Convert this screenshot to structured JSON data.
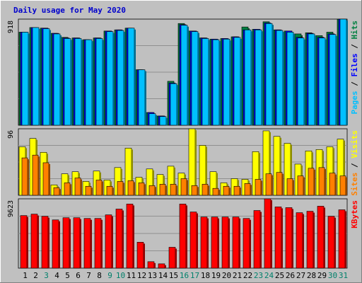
{
  "chart_data": {
    "type": "bar",
    "title": "Daily usage for May 2020",
    "categories": [
      "1",
      "2",
      "3",
      "4",
      "5",
      "6",
      "7",
      "8",
      "9",
      "10",
      "11",
      "12",
      "13",
      "14",
      "15",
      "16",
      "17",
      "18",
      "19",
      "20",
      "21",
      "22",
      "23",
      "24",
      "25",
      "26",
      "27",
      "28",
      "29",
      "30",
      "31"
    ],
    "weekend_days": [
      3,
      9,
      10,
      16,
      17,
      23,
      24,
      30,
      31
    ],
    "colors": {
      "background": "#c0c0c0",
      "title": "#0000cc",
      "hits": "#008040",
      "files": "#0000ff",
      "pages": "#00c0ff",
      "visits": "#ffff00",
      "sites": "#ff8000",
      "kbytes": "#ff0000",
      "weekday_label": "#000000",
      "weekend_label": "#00806b"
    },
    "panels": [
      {
        "ymax_label": "918",
        "ylim": [
          0,
          918
        ],
        "side_label": [
          {
            "text": "Pages",
            "color": "#00c0ff"
          },
          {
            "text": " / ",
            "color": "#000000"
          },
          {
            "text": "Files",
            "color": "#0000ff"
          },
          {
            "text": " / ",
            "color": "#000000"
          },
          {
            "text": "Hits",
            "color": "#008040"
          }
        ],
        "series": [
          {
            "name": "Hits",
            "values": [
              805,
              845,
              840,
              795,
              760,
              755,
              740,
              755,
              815,
              825,
              840,
              480,
              110,
              80,
              380,
              880,
              815,
              755,
              745,
              750,
              765,
              850,
              830,
              895,
              825,
              815,
              790,
              800,
              775,
              805,
              918
            ]
          },
          {
            "name": "Files",
            "values": [
              805,
              845,
              840,
              795,
              755,
              755,
              740,
              755,
              815,
              825,
              840,
              480,
              110,
              80,
              365,
              870,
              815,
              755,
              745,
              750,
              765,
              825,
              830,
              885,
              825,
              815,
              760,
              795,
              760,
              790,
              918
            ]
          },
          {
            "name": "Pages",
            "values": [
              805,
              845,
              835,
              790,
              750,
              750,
              740,
              750,
              810,
              820,
              840,
              480,
              100,
              75,
              360,
              865,
              810,
              750,
              740,
              745,
              760,
              825,
              825,
              880,
              820,
              805,
              755,
              790,
              755,
              785,
              918
            ]
          }
        ]
      },
      {
        "ymax_label": "96",
        "ylim": [
          0,
          96
        ],
        "side_label": [
          {
            "text": "Sites",
            "color": "#ff8000"
          },
          {
            "text": " / ",
            "color": "#000000"
          },
          {
            "text": "Visits",
            "color": "#ffff00"
          }
        ],
        "series": [
          {
            "name": "Visits",
            "values": [
              70,
              82,
              62,
              15,
              31,
              34,
              20,
              35,
              22,
              40,
              68,
              26,
              38,
              30,
              42,
              32,
              96,
              72,
              34,
              18,
              24,
              23,
              63,
              93,
              85,
              75,
              45,
              64,
              66,
              70,
              81
            ]
          },
          {
            "name": "Sites",
            "values": [
              54,
              58,
              47,
              11,
              18,
              25,
              13,
              22,
              13,
              20,
              21,
              18,
              14,
              16,
              16,
              24,
              14,
              16,
              10,
              13,
              13,
              17,
              23,
              31,
              33,
              24,
              28,
              39,
              40,
              32,
              28
            ]
          }
        ]
      },
      {
        "ymax_label": "9623",
        "ylim": [
          0,
          9623
        ],
        "side_label": [
          {
            "text": "KBytes",
            "color": "#ff0000"
          }
        ],
        "series": [
          {
            "name": "KBytes",
            "values": [
              7300,
              7500,
              7200,
              6700,
              7000,
              7000,
              6900,
              6900,
              7400,
              8200,
              8900,
              3600,
              900,
              600,
              2900,
              8900,
              7800,
              7100,
              7100,
              7100,
              7100,
              6900,
              8000,
              9623,
              8500,
              8400,
              7700,
              7900,
              8600,
              7200,
              8100
            ]
          }
        ]
      }
    ]
  }
}
